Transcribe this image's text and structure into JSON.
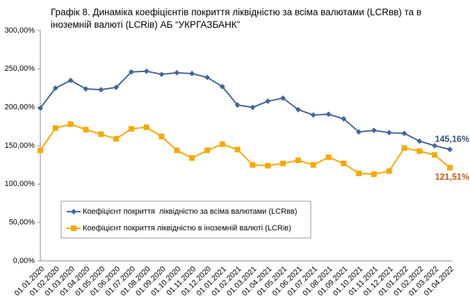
{
  "chart_data": {
    "type": "line",
    "title": [
      "Графік 8. Динаміка коефіцієнтів покриття ліквідністю за всіма валютами (LCRвв) та в",
      "іноземній валюті (LCRів) АБ “УКРГАЗБАНК”"
    ],
    "categories": [
      "01.01.2020",
      "01.02.2020",
      "01.03.2020",
      "01.04.2020",
      "01.05.2020",
      "01.06.2020",
      "01.07.2020",
      "01.08.2020",
      "01.09.2020",
      "01.10.2020",
      "01.11.2020",
      "01.12.2020",
      "01.01.2021",
      "01.02.2021",
      "01.03.2021",
      "01.04.2021",
      "01.05.2021",
      "01.06.2021",
      "01.07.2021",
      "01.08.2021",
      "01.09.2021",
      "01.10.2021",
      "01.11.2021",
      "01.12.2021",
      "01.01.2022",
      "01.02.2022",
      "01.03.2022",
      "01.04.2022"
    ],
    "series": [
      {
        "name": "Коефіцієнт покриття  ліквідністю за всіма валютами (LCRвв)",
        "color": "#41669a",
        "marker": "diamond",
        "values": [
          199,
          225,
          235,
          224,
          223,
          226,
          246,
          247,
          243,
          245,
          244,
          239,
          227,
          203,
          200,
          208,
          212,
          197,
          190,
          191,
          185,
          168,
          170,
          167,
          166,
          156,
          150,
          145.16
        ],
        "value_labels": [
          null,
          null,
          null,
          null,
          null,
          null,
          null,
          null,
          null,
          null,
          null,
          null,
          null,
          null,
          null,
          null,
          null,
          null,
          null,
          null,
          null,
          null,
          null,
          null,
          null,
          null,
          null,
          "145,16%"
        ]
      },
      {
        "name": "Коефіцієнт покриття ліквідністю в іноземній валюті (LCRів)",
        "color": "#f6a800",
        "marker": "square",
        "values": [
          144,
          173,
          178,
          171,
          165,
          159,
          172,
          174,
          162,
          144,
          134,
          144,
          152,
          145,
          125,
          124,
          127,
          131,
          125,
          135,
          127,
          114,
          113,
          117,
          147,
          143,
          138,
          121.51
        ],
        "value_labels": [
          null,
          null,
          null,
          null,
          null,
          null,
          null,
          null,
          null,
          null,
          null,
          null,
          null,
          null,
          null,
          null,
          null,
          null,
          null,
          null,
          null,
          null,
          null,
          null,
          null,
          null,
          null,
          "121,51%"
        ]
      }
    ],
    "ylim": [
      0,
      300
    ],
    "yticks": [
      {
        "value": 0,
        "label": "0,00%"
      },
      {
        "value": 50,
        "label": "50,00%"
      },
      {
        "value": 100,
        "label": "100,00%"
      },
      {
        "value": 150,
        "label": "150,00%"
      },
      {
        "value": 200,
        "label": "200,00%"
      },
      {
        "value": 250,
        "label": "250,00%"
      },
      {
        "value": 300,
        "label": "300,00%"
      }
    ],
    "grid": false
  }
}
